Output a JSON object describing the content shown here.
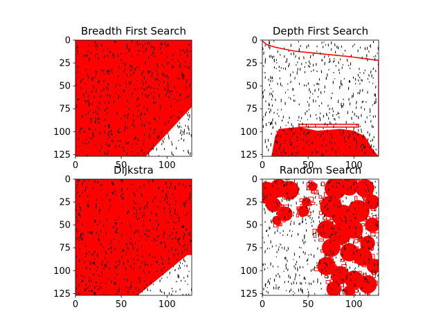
{
  "chart_data": [
    {
      "type": "heatmap",
      "title": "Breadth First Search",
      "xlim": [
        0,
        127
      ],
      "ylim": [
        127,
        0
      ],
      "xticks": [
        0,
        50,
        100
      ],
      "yticks": [
        0,
        25,
        50,
        75,
        100,
        125
      ],
      "explored_color": "#ff0000",
      "obstacle_color": "#000000",
      "explored_polygon": [
        [
          0,
          0
        ],
        [
          127,
          0
        ],
        [
          127,
          73
        ],
        [
          77,
          127
        ],
        [
          0,
          127
        ]
      ]
    },
    {
      "type": "heatmap",
      "title": "Depth First Search",
      "xlim": [
        0,
        127
      ],
      "ylim": [
        127,
        0
      ],
      "xticks": [
        0,
        50,
        100
      ],
      "yticks": [
        0,
        25,
        50,
        75,
        100,
        125
      ],
      "explored_color": "#ff0000",
      "obstacle_color": "#000000",
      "explored_paths": [
        [
          [
            0,
            1
          ],
          [
            5,
            5
          ],
          [
            15,
            8
          ],
          [
            25,
            10
          ],
          [
            35,
            12
          ],
          [
            55,
            14
          ],
          [
            75,
            16
          ],
          [
            95,
            18
          ],
          [
            110,
            20
          ],
          [
            125,
            22
          ],
          [
            127,
            22
          ],
          [
            127,
            127
          ]
        ],
        [
          [
            40,
            91
          ],
          [
            40,
            95
          ],
          [
            105,
            95
          ],
          [
            105,
            92
          ],
          [
            40,
            92
          ]
        ],
        [
          [
            15,
            100
          ],
          [
            70,
            100
          ],
          [
            70,
            110
          ],
          [
            105,
            110
          ],
          [
            105,
            116
          ],
          [
            30,
            116
          ]
        ],
        [
          [
            20,
            121
          ],
          [
            105,
            121
          ]
        ],
        [
          [
            10,
            126
          ],
          [
            125,
            126
          ]
        ]
      ],
      "explored_polygons": [
        [
          [
            18,
            97
          ],
          [
            40,
            95
          ],
          [
            60,
            99
          ],
          [
            85,
            97
          ],
          [
            100,
            99
          ],
          [
            112,
            105
          ],
          [
            121,
            120
          ],
          [
            127,
            127
          ],
          [
            10,
            127
          ],
          [
            14,
            105
          ]
        ]
      ]
    },
    {
      "type": "heatmap",
      "title": "Dijkstra",
      "xlim": [
        0,
        127
      ],
      "ylim": [
        127,
        0
      ],
      "xticks": [
        0,
        50,
        100
      ],
      "yticks": [
        0,
        25,
        50,
        75,
        100,
        125
      ],
      "explored_color": "#ff0000",
      "obstacle_color": "#000000",
      "explored_polygon": [
        [
          0,
          0
        ],
        [
          127,
          0
        ],
        [
          127,
          83
        ],
        [
          122,
          83
        ],
        [
          68,
          127
        ],
        [
          0,
          127
        ]
      ]
    },
    {
      "type": "heatmap",
      "title": "Random Search",
      "xlim": [
        0,
        127
      ],
      "ylim": [
        127,
        0
      ],
      "xticks": [
        0,
        50,
        100
      ],
      "yticks": [
        0,
        25,
        50,
        75,
        100,
        125
      ],
      "explored_color": "#ff0000",
      "obstacle_color": "#000000",
      "explored_blobs": [
        [
          5,
          15,
          12
        ],
        [
          18,
          10,
          10
        ],
        [
          30,
          12,
          10
        ],
        [
          12,
          28,
          8
        ],
        [
          25,
          38,
          8
        ],
        [
          16,
          45,
          5
        ],
        [
          45,
          35,
          6
        ],
        [
          48,
          25,
          5
        ],
        [
          55,
          8,
          5
        ],
        [
          80,
          10,
          12
        ],
        [
          95,
          8,
          10
        ],
        [
          112,
          10,
          10
        ],
        [
          120,
          25,
          8
        ],
        [
          75,
          30,
          12
        ],
        [
          88,
          40,
          12
        ],
        [
          105,
          35,
          12
        ],
        [
          120,
          50,
          8
        ],
        [
          70,
          55,
          10
        ],
        [
          85,
          60,
          12
        ],
        [
          100,
          55,
          10
        ],
        [
          115,
          70,
          8
        ],
        [
          75,
          75,
          10
        ],
        [
          95,
          80,
          10
        ],
        [
          110,
          85,
          10
        ],
        [
          122,
          95,
          8
        ],
        [
          70,
          95,
          10
        ],
        [
          85,
          105,
          10
        ],
        [
          100,
          110,
          10
        ],
        [
          115,
          115,
          10
        ],
        [
          78,
          120,
          8
        ],
        [
          95,
          122,
          6
        ]
      ]
    }
  ]
}
